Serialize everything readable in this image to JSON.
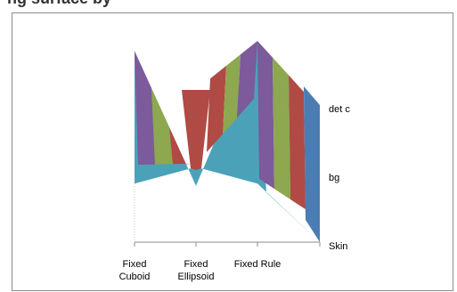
{
  "title_fragment": "ng surface by",
  "chart_data": {
    "type": "surface",
    "title": "",
    "x_categories": [
      "Fixed Cuboid",
      "Fixed Ellipsoid",
      "Fixed Rule",
      ""
    ],
    "x_tick_labels": [
      {
        "lines": [
          "Fixed",
          "Cuboid"
        ]
      },
      {
        "lines": [
          "Fixed",
          "Ellipsoid"
        ]
      },
      {
        "lines": [
          "Fixed Rule"
        ]
      }
    ],
    "depth_axis_labels": [
      "det c",
      "bg",
      "Skin"
    ],
    "top_ridge_values": [
      0.95,
      0.28,
      1.0,
      0.66
    ],
    "front_face_values": [
      0.46,
      0.59,
      0.46,
      0.0
    ],
    "band_colors": [
      "#7C5A9B",
      "#8DA84E",
      "#B04A45",
      "#4BA2B8",
      "#4B7DB4"
    ],
    "colors": {
      "teal_face": "#4BA2B8",
      "purple": "#7C5A9B",
      "green": "#8DA84E",
      "red": "#B04A45",
      "blue_side": "#4B7DB4",
      "frame": "#8C8C8C"
    }
  }
}
